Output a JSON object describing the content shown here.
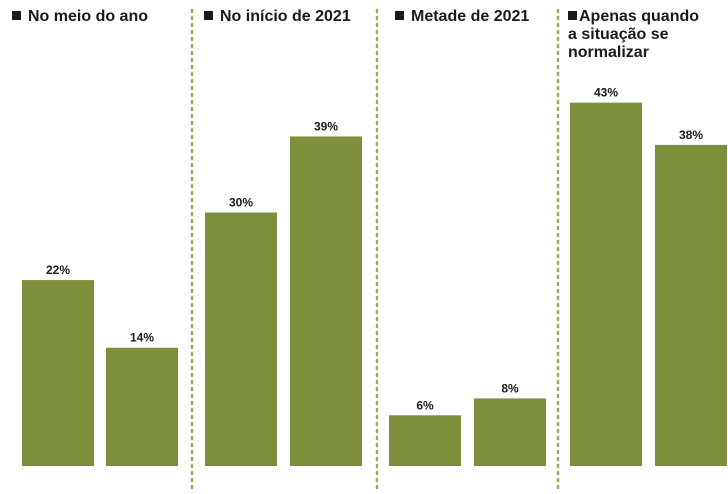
{
  "chart_data": {
    "type": "bar",
    "title": "",
    "groups": [
      {
        "label": "No meio do ano",
        "values": [
          22,
          14
        ],
        "labels": [
          "22%",
          "14%"
        ]
      },
      {
        "label": "No início de 2021",
        "values": [
          30,
          39
        ],
        "labels": [
          "30%",
          "39%"
        ]
      },
      {
        "label": "Metade de 2021",
        "values": [
          6,
          8
        ],
        "labels": [
          "6%",
          "8%"
        ]
      },
      {
        "label": "Apenas quando\na situação se\nnormalizar",
        "values": [
          43,
          38
        ],
        "labels": [
          "43%",
          "38%"
        ]
      }
    ],
    "unit": "%",
    "ylim": [
      0,
      48
    ],
    "grid": false,
    "colors": {
      "bar": "#7d8f3a",
      "separator": "#9bab5a",
      "text": "#1a1a1a"
    }
  }
}
